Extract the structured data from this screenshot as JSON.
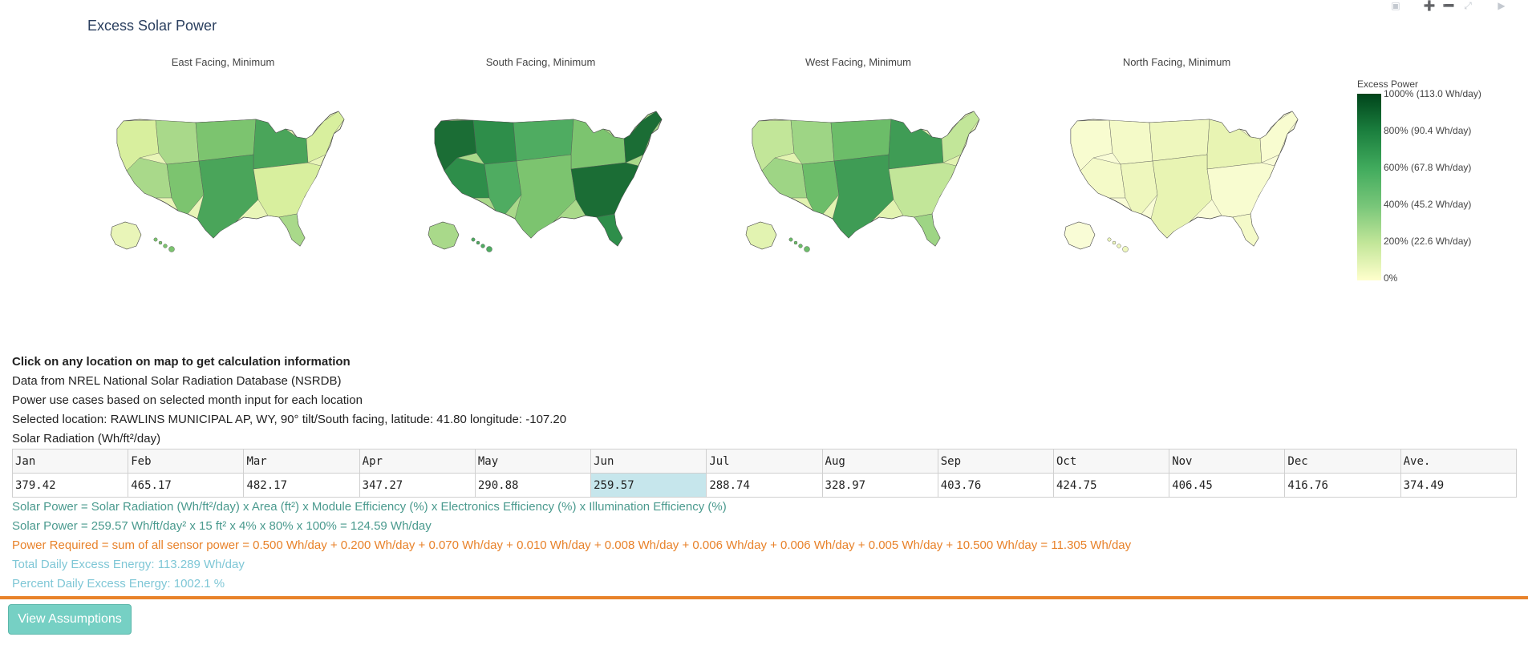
{
  "plot": {
    "title": "Excess Solar Power",
    "subplots": [
      {
        "title": "East Facing, Minimum",
        "shade": [
          "#d8ef9e",
          "#a9d98a",
          "#7cc46f",
          "#4aa55a",
          "#e9f5b8"
        ]
      },
      {
        "title": "South Facing, Minimum",
        "shade": [
          "#1b6d35",
          "#2e8e4a",
          "#4fac61",
          "#7cc46f",
          "#a9d98a"
        ]
      },
      {
        "title": "West Facing, Minimum",
        "shade": [
          "#c2e699",
          "#9ed585",
          "#6cbd69",
          "#3f9c55",
          "#e2f3b1"
        ]
      },
      {
        "title": "North Facing, Minimum",
        "shade": [
          "#f8fcd0",
          "#f4fac8",
          "#eef7bd",
          "#e8f4b3",
          "#f9fcd6"
        ]
      }
    ],
    "colorbar": {
      "title": "Excess Power",
      "ticks": [
        "1000% (113.0 Wh/day)",
        "800% (90.4 Wh/day)",
        "600% (67.8 Wh/day)",
        "400% (45.2 Wh/day)",
        "200% (22.6 Wh/day)",
        "0%"
      ]
    },
    "modebar": {
      "icons": [
        "camera-icon",
        "zoom-in-icon",
        "zoom-out-icon",
        "autoscale-icon",
        "plotly-logo-icon"
      ],
      "glyphs": [
        "▣",
        "➕",
        "➖",
        "⤢",
        "▶"
      ]
    }
  },
  "info": {
    "heading": "Click on any location on map to get calculation information",
    "source": "Data from NREL National Solar Radiation Database (NSRDB)",
    "use_cases": "Power use cases based on selected month input for each location",
    "location": "Selected location: RAWLINS MUNICIPAL AP, WY, 90° tilt/South facing, latitude: 41.80 longitude: -107.20",
    "radiation_label": "Solar Radiation (Wh/ft²/day)"
  },
  "radiation_table": {
    "months": [
      "Jan",
      "Feb",
      "Mar",
      "Apr",
      "May",
      "Jun",
      "Jul",
      "Aug",
      "Sep",
      "Oct",
      "Nov",
      "Dec",
      "Ave."
    ],
    "values": [
      "379.42",
      "465.17",
      "482.17",
      "347.27",
      "290.88",
      "259.57",
      "288.74",
      "328.97",
      "403.76",
      "424.75",
      "406.45",
      "416.76",
      "374.49"
    ],
    "highlight_index": 5
  },
  "formulas": {
    "solar_power_formula": "Solar Power = Solar Radiation (Wh/ft²/day) x Area (ft²) x Module Efficiency (%) x Electronics Efficiency (%) x Illumination Efficiency (%)",
    "solar_power_calc": "Solar Power = 259.57 Wh/ft/day² x 15 ft² x 4% x 80% x 100% = 124.59 Wh/day",
    "power_required": "Power Required = sum of all sensor power = 0.500 Wh/day + 0.200 Wh/day + 0.070 Wh/day + 0.010 Wh/day + 0.008 Wh/day + 0.006 Wh/day + 0.006 Wh/day + 0.005 Wh/day + 10.500 Wh/day = 11.305 Wh/day",
    "total_excess": "Total Daily Excess Energy: 113.289 Wh/day",
    "percent_excess": "Percent Daily Excess Energy: 1002.1 %"
  },
  "actions": {
    "view_assumptions": "View Assumptions"
  }
}
